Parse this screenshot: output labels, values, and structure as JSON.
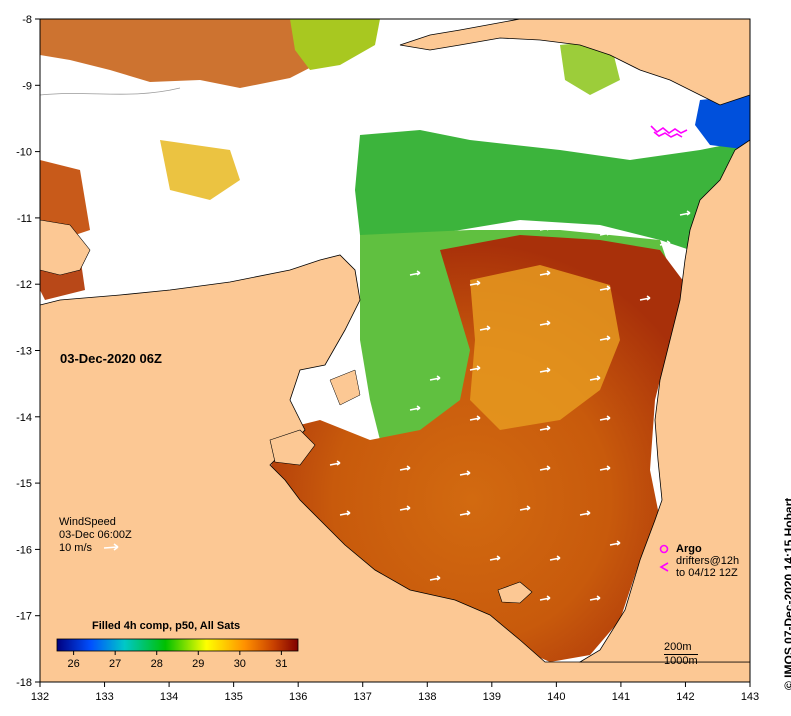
{
  "map": {
    "date_label": "03-Dec-2020 06Z",
    "x_ticks": [
      "132",
      "133",
      "134",
      "135",
      "136",
      "137",
      "138",
      "139",
      "140",
      "141",
      "142",
      "143"
    ],
    "y_ticks": [
      "-8",
      "-9",
      "-10",
      "-11",
      "-12",
      "-13",
      "-14",
      "-15",
      "-16",
      "-17",
      "-18"
    ],
    "lon_range": [
      132,
      143
    ],
    "lat_range": [
      -18,
      -8
    ],
    "colors": {
      "land": "#fcc894",
      "cloud_gap": "#ffffff",
      "coast": "#000000",
      "argo": "#ff00ff",
      "wind_vector": "#ffffff"
    }
  },
  "wind_legend": {
    "title": "WindSpeed",
    "time": "03-Dec 06:00Z",
    "scale": "10 m/s"
  },
  "colorbar": {
    "title": "Filled 4h comp, p50, All Sats",
    "ticks": [
      "26",
      "27",
      "28",
      "29",
      "30",
      "31"
    ],
    "range": [
      25.6,
      31.4
    ],
    "colors": [
      "#00007f",
      "#0050ff",
      "#00c8c8",
      "#00c000",
      "#ffff00",
      "#ff9000",
      "#c84000",
      "#800000"
    ]
  },
  "argo_legend": {
    "title": "Argo",
    "drifters_line1": "drifters@12h",
    "drifters_line2": "to 04/12 12Z"
  },
  "scale_legend": {
    "contour1": "200m",
    "contour2": "1000m"
  },
  "credit": "© IMOS 07-Dec-2020 14:15 Hobart"
}
